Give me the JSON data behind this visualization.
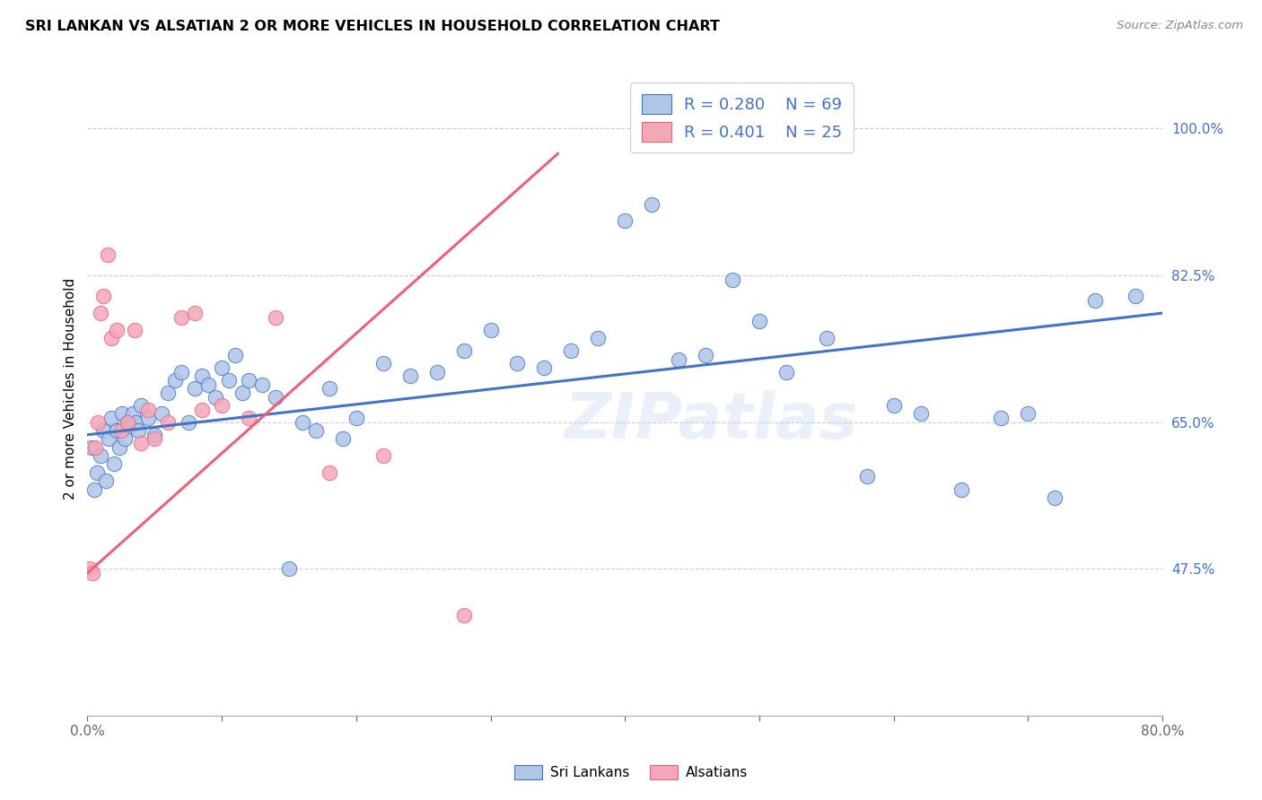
{
  "title": "SRI LANKAN VS ALSATIAN 2 OR MORE VEHICLES IN HOUSEHOLD CORRELATION CHART",
  "source": "Source: ZipAtlas.com",
  "ylabel": "2 or more Vehicles in Household",
  "yticks": [
    47.5,
    65.0,
    82.5,
    100.0
  ],
  "ytick_labels": [
    "47.5%",
    "65.0%",
    "82.5%",
    "100.0%"
  ],
  "xlim": [
    0.0,
    80.0
  ],
  "ylim": [
    30.0,
    108.0
  ],
  "legend_label1": "Sri Lankans",
  "legend_label2": "Alsatians",
  "R1": "0.280",
  "N1": "69",
  "R2": "0.401",
  "N2": "25",
  "sri_lankan_color": "#aec6e8",
  "alsatian_color": "#f4a7b9",
  "line1_color": "#4472c4",
  "line2_color": "#e8637a",
  "watermark": "ZIPatlas",
  "sri_lankans_x": [
    0.3,
    0.5,
    0.7,
    1.0,
    1.2,
    1.4,
    1.6,
    1.8,
    2.0,
    2.2,
    2.4,
    2.6,
    2.8,
    3.0,
    3.2,
    3.4,
    3.6,
    3.8,
    4.0,
    4.5,
    5.0,
    5.5,
    6.0,
    6.5,
    7.0,
    7.5,
    8.0,
    8.5,
    9.0,
    9.5,
    10.0,
    10.5,
    11.0,
    11.5,
    12.0,
    13.0,
    14.0,
    15.0,
    16.0,
    17.0,
    18.0,
    19.0,
    20.0,
    22.0,
    24.0,
    26.0,
    28.0,
    30.0,
    32.0,
    34.0,
    36.0,
    38.0,
    40.0,
    42.0,
    44.0,
    46.0,
    48.0,
    50.0,
    52.0,
    55.0,
    58.0,
    60.0,
    62.0,
    65.0,
    68.0,
    70.0,
    72.0,
    75.0,
    78.0
  ],
  "sri_lankans_y": [
    62.0,
    57.0,
    59.0,
    61.0,
    64.0,
    58.0,
    63.0,
    65.5,
    60.0,
    64.0,
    62.0,
    66.0,
    63.0,
    65.0,
    64.5,
    66.0,
    65.0,
    64.0,
    67.0,
    65.5,
    63.5,
    66.0,
    68.5,
    70.0,
    71.0,
    65.0,
    69.0,
    70.5,
    69.5,
    68.0,
    71.5,
    70.0,
    73.0,
    68.5,
    70.0,
    69.5,
    68.0,
    47.5,
    65.0,
    64.0,
    69.0,
    63.0,
    65.5,
    72.0,
    70.5,
    71.0,
    73.5,
    76.0,
    72.0,
    71.5,
    73.5,
    75.0,
    89.0,
    91.0,
    72.5,
    73.0,
    82.0,
    77.0,
    71.0,
    75.0,
    58.5,
    67.0,
    66.0,
    57.0,
    65.5,
    66.0,
    56.0,
    79.5,
    80.0
  ],
  "alsatians_x": [
    0.2,
    0.4,
    0.6,
    0.8,
    1.0,
    1.2,
    1.5,
    1.8,
    2.2,
    2.5,
    3.0,
    3.5,
    4.0,
    4.5,
    5.0,
    6.0,
    7.0,
    8.0,
    8.5,
    10.0,
    12.0,
    14.0,
    18.0,
    22.0,
    28.0
  ],
  "alsatians_y": [
    47.5,
    47.0,
    62.0,
    65.0,
    78.0,
    80.0,
    85.0,
    75.0,
    76.0,
    64.0,
    65.0,
    76.0,
    62.5,
    66.5,
    63.0,
    65.0,
    77.5,
    78.0,
    66.5,
    67.0,
    65.5,
    77.5,
    59.0,
    61.0,
    42.0
  ]
}
